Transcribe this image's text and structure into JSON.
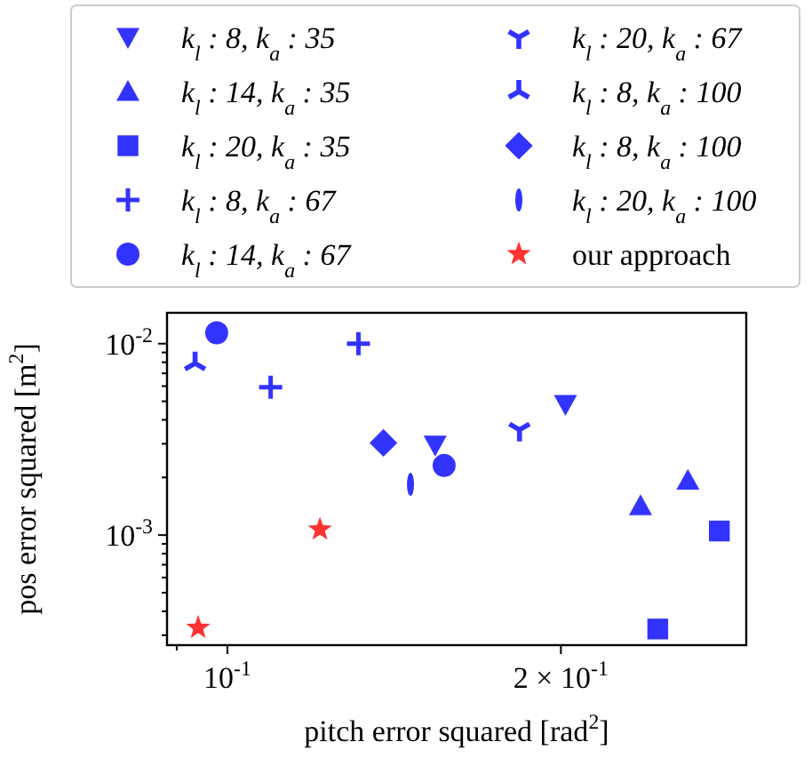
{
  "chart_data": {
    "type": "scatter",
    "xlabel": "pitch error squared [rad$^{2}$]",
    "ylabel": "pos error squared [m$^{2}$]",
    "log": "xy",
    "xlim": [
      0.0882,
      0.294
    ],
    "ylim": [
      0.000266,
      0.0145
    ],
    "xticks": [
      {
        "value": 0.09,
        "label": null
      },
      {
        "value": 0.1,
        "label": "10$^{-1}$"
      },
      {
        "value": 0.2,
        "label": "2 × 10$^{-1}$"
      }
    ],
    "yticks": [
      {
        "value": 0.0003,
        "label": null
      },
      {
        "value": 0.0004,
        "label": null
      },
      {
        "value": 0.0005,
        "label": null
      },
      {
        "value": 0.0006,
        "label": null
      },
      {
        "value": 0.0007,
        "label": null
      },
      {
        "value": 0.0008,
        "label": null
      },
      {
        "value": 0.0009,
        "label": null
      },
      {
        "value": 0.001,
        "label": "10$^{-3}$"
      },
      {
        "value": 0.002,
        "label": null
      },
      {
        "value": 0.003,
        "label": null
      },
      {
        "value": 0.004,
        "label": null
      },
      {
        "value": 0.005,
        "label": null
      },
      {
        "value": 0.006,
        "label": null
      },
      {
        "value": 0.007,
        "label": null
      },
      {
        "value": 0.008,
        "label": null
      },
      {
        "value": 0.009,
        "label": null
      },
      {
        "value": 0.01,
        "label": "10$^{-2}$"
      }
    ],
    "grid": false,
    "legend": "top",
    "series": [
      {
        "name": "k$_{l}$ : 8, k$_{a}$ : 35",
        "color": "#3333ff",
        "marker": "triangle-down",
        "x": [
          0.2019,
          0.154
        ],
        "values": [
          0.00482,
          0.00296
        ]
      },
      {
        "name": "k$_{l}$ : 14, k$_{a}$ : 35",
        "color": "#3333ff",
        "marker": "triangle",
        "x": [
          0.236,
          0.2604
        ],
        "values": [
          0.00142,
          0.00193
        ]
      },
      {
        "name": "k$_{l}$ : 20, k$_{a}$ : 35",
        "color": "#3333ff",
        "marker": "square",
        "x": [
          0.278,
          0.2446
        ],
        "values": [
          0.00105,
          0.000323
        ]
      },
      {
        "name": "k$_{l}$ : 8, k$_{a}$ : 67",
        "color": "#3333ff",
        "marker": "plus",
        "x": [
          0.1313,
          0.1094
        ],
        "values": [
          0.01,
          0.00593
        ]
      },
      {
        "name": "k$_{l}$ : 14, k$_{a}$ : 67",
        "color": "#3333ff",
        "marker": "circle",
        "x": [
          0.0978,
          0.1569
        ],
        "values": [
          0.0114,
          0.00231
        ]
      },
      {
        "name": "k$_{l}$ : 20, k$_{a}$ : 67",
        "color": "#3333ff",
        "x": [
          0.1835
        ],
        "values": [
          0.00355
        ]
      },
      {
        "name": "k$_{l}$ : 8, k$_{a}$ : 100",
        "color": "#3333ff",
        "x": [
          0.0935
        ],
        "values": [
          0.0079
        ]
      },
      {
        "name": "k$_{l}$ : 8, k$_{a}$ : 100",
        "color": "#3333ff",
        "marker": "diamond",
        "x": [
          0.1383
        ],
        "values": [
          0.00303
        ]
      },
      {
        "name": "k$_{l}$ : 20, k$_{a}$ : 100",
        "color": "#3333ff",
        "x": [
          0.1463
        ],
        "values": [
          0.00184
        ]
      },
      {
        "name": "our approach",
        "color": "#ff3333",
        "marker": "star",
        "x": [
          0.1212,
          0.0941
        ],
        "values": [
          0.00107,
          0.000328
        ]
      }
    ]
  }
}
